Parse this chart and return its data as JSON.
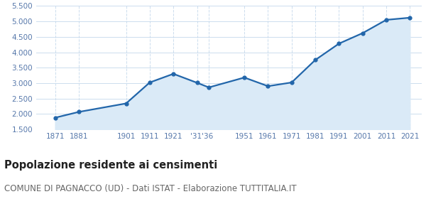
{
  "years": [
    1871,
    1881,
    1901,
    1911,
    1921,
    1931,
    1936,
    1951,
    1961,
    1971,
    1981,
    1991,
    2001,
    2011,
    2021
  ],
  "population": [
    1878,
    2065,
    2340,
    3020,
    3300,
    3010,
    2860,
    3180,
    2900,
    3020,
    3750,
    4280,
    4620,
    5050,
    5120
  ],
  "x_tick_positions": [
    1871,
    1881,
    1901,
    1911,
    1921,
    1933,
    1951,
    1961,
    1971,
    1981,
    1991,
    2001,
    2011,
    2021
  ],
  "x_tick_labels": [
    "1871",
    "1881",
    "1901",
    "1911",
    "1921",
    "'31'36",
    "1951",
    "1961",
    "1971",
    "1981",
    "1991",
    "2001",
    "2011",
    "2021"
  ],
  "x_grid_positions": [
    1871,
    1881,
    1901,
    1911,
    1921,
    1931,
    1936,
    1951,
    1961,
    1971,
    1981,
    1991,
    2001,
    2011,
    2021
  ],
  "ylim": [
    1500,
    5500
  ],
  "yticks": [
    1500,
    2000,
    2500,
    3000,
    3500,
    4000,
    4500,
    5000,
    5500
  ],
  "xlim_min": 1863,
  "xlim_max": 2026,
  "line_color": "#2266aa",
  "fill_color": "#daeaf7",
  "marker_color": "#2266aa",
  "grid_color": "#ccddee",
  "background_color": "#ffffff",
  "tick_label_color": "#5577aa",
  "title": "Popolazione residente ai censimenti",
  "subtitle": "COMUNE DI PAGNACCO (UD) - Dati ISTAT - Elaborazione TUTTITALIA.IT",
  "title_fontsize": 10.5,
  "subtitle_fontsize": 8.5,
  "title_color": "#222222",
  "subtitle_color": "#666666"
}
